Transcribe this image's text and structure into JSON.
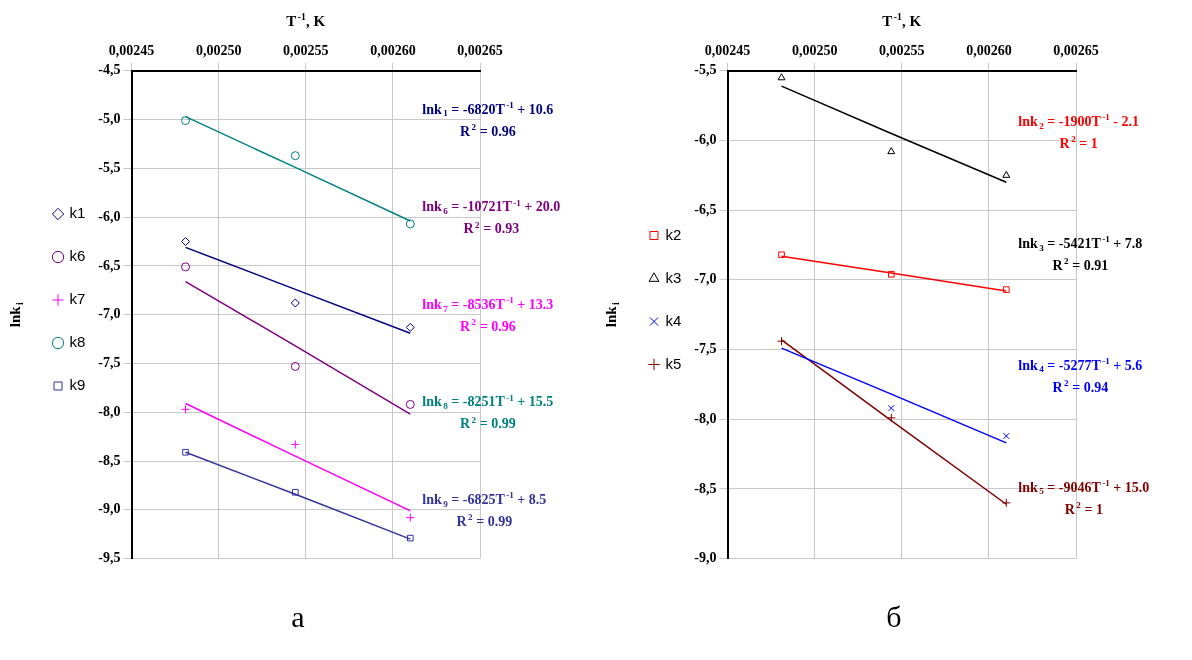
{
  "chart_data": [
    {
      "type": "scatter",
      "xlabel": "T$^{-1}$, K",
      "ylabel": "lnk$_{i}$",
      "annotations": [
        "а"
      ],
      "grid": true,
      "legend": "left",
      "xlim": [
        0.00245,
        0.00265
      ],
      "xticks": [
        {
          "value": 0.00245,
          "label": "0,00245"
        },
        {
          "value": 0.0025,
          "label": "0,00250"
        },
        {
          "value": 0.00255,
          "label": "0,00255"
        },
        {
          "value": 0.0026,
          "label": "0,00260"
        },
        {
          "value": 0.00265,
          "label": "0,00265"
        }
      ],
      "ylim": [
        -9.5,
        -4.5
      ],
      "yticks": [
        {
          "value": -4.5,
          "label": "-4,5"
        },
        {
          "value": -5,
          "label": "-5,0"
        },
        {
          "value": -5.5,
          "label": "-5,5"
        },
        {
          "value": -6,
          "label": "-6,0"
        },
        {
          "value": -6.5,
          "label": "-6,5"
        },
        {
          "value": -7,
          "label": "-7,0"
        },
        {
          "value": -7.5,
          "label": "-7,5"
        },
        {
          "value": -8,
          "label": "-8,0"
        },
        {
          "value": -8.5,
          "label": "-8,5"
        },
        {
          "value": -9,
          "label": "-9,0"
        },
        {
          "value": -9.5,
          "label": "-9,5"
        }
      ],
      "x": [
        0.002481,
        0.002544,
        0.00261
      ],
      "series": [
        {
          "name": "k1",
          "color": "#000080",
          "marker": "diamond",
          "values": [
            -6.25,
            -6.88,
            -7.13
          ]
        },
        {
          "name": "k6",
          "color": "#800080",
          "marker": "circle",
          "values": [
            -6.51,
            -7.53,
            -7.92
          ]
        },
        {
          "name": "k7",
          "color": "#ff00ff",
          "marker": "cross",
          "values": [
            -7.97,
            -8.33,
            -9.08
          ]
        },
        {
          "name": "k8",
          "color": "#008080",
          "marker": "circle",
          "values": [
            -5.01,
            -5.37,
            -6.07
          ]
        },
        {
          "name": "k9",
          "color": "#333399",
          "marker": "square",
          "values": [
            -8.41,
            -8.82,
            -9.29
          ]
        },
        {
          "type": "line",
          "name": "lnk$_{1}$ = -6820T$^{-1}$ + 10.6\nR$^{2}$ = 0.96",
          "color": "#000080",
          "marker": "none",
          "values": [
            -6.31,
            -6.74,
            -7.19
          ]
        },
        {
          "type": "line",
          "name": "lnk$_{6}$ = -10721T$^{-1}$ + 20.0\nR$^{2}$ = 0.93",
          "color": "#800080",
          "marker": "none",
          "values": [
            -6.66,
            -7.32,
            -8.02
          ]
        },
        {
          "type": "line",
          "name": "lnk$_{7}$ = -8536T$^{-1}$ + 13.3\nR$^{2}$ = 0.96",
          "color": "#ff00ff",
          "marker": "none",
          "values": [
            -7.91,
            -8.45,
            -9.01
          ]
        },
        {
          "type": "line",
          "name": "lnk$_{8}$ = -8251T$^{-1}$ + 15.5\nR$^{2}$ = 0.99",
          "color": "#008080",
          "marker": "none",
          "values": [
            -4.97,
            -5.49,
            -6.04
          ]
        },
        {
          "type": "line",
          "name": "lnk$_{9}$ = -6825T$^{-1}$ + 8.5\nR$^{2}$ = 0.99",
          "color": "#333399",
          "marker": "none",
          "values": [
            -8.41,
            -8.84,
            -9.3
          ]
        }
      ]
    },
    {
      "type": "scatter",
      "xlabel": "T$^{-1}$, K",
      "ylabel": "lnk$_{i}$",
      "annotations": [
        "б"
      ],
      "grid": true,
      "legend": "left",
      "xlim": [
        0.00245,
        0.00265
      ],
      "xticks": [
        {
          "value": 0.00245,
          "label": "0,00245"
        },
        {
          "value": 0.0025,
          "label": "0,00250"
        },
        {
          "value": 0.00255,
          "label": "0,00255"
        },
        {
          "value": 0.0026,
          "label": "0,00260"
        },
        {
          "value": 0.00265,
          "label": "0,00265"
        }
      ],
      "ylim": [
        -9,
        -5.5
      ],
      "yticks": [
        {
          "value": -5.5,
          "label": "-5,5"
        },
        {
          "value": -6,
          "label": "-6,0"
        },
        {
          "value": -6.5,
          "label": "-6,5"
        },
        {
          "value": -7,
          "label": "-7,0"
        },
        {
          "value": -7.5,
          "label": "-7,5"
        },
        {
          "value": -8,
          "label": "-8,0"
        },
        {
          "value": -8.5,
          "label": "-8,5"
        },
        {
          "value": -9,
          "label": "-9,0"
        }
      ],
      "x": [
        0.002481,
        0.002544,
        0.00261
      ],
      "series": [
        {
          "name": "k2",
          "color": "#ff0000",
          "marker": "square",
          "values": [
            -6.82,
            -6.96,
            -7.07
          ]
        },
        {
          "name": "k3",
          "color": "#000000",
          "marker": "triangle",
          "values": [
            -5.55,
            -6.08,
            -6.25
          ]
        },
        {
          "name": "k4",
          "color": "#0000ff",
          "marker": "x",
          "values": [
            null,
            -7.92,
            -8.12
          ]
        },
        {
          "name": "k5",
          "color": "#800000",
          "marker": "cross",
          "values": [
            -7.44,
            -7.99,
            -8.6
          ]
        },
        {
          "type": "line",
          "name": "lnk$_{2}$ = -1900T$^{-1}$ - 2.1\nR$^{2}$ = 1",
          "color": "#ff0000",
          "marker": "none",
          "values": [
            -6.83,
            -6.95,
            -7.08
          ]
        },
        {
          "type": "line",
          "name": "lnk$_{3}$ = -5421T$^{-1}$ + 7.8\nR$^{2}$ = 0.91",
          "color": "#000000",
          "marker": "none",
          "values": [
            -5.61,
            -5.95,
            -6.3
          ]
        },
        {
          "type": "line",
          "name": "lnk$_{4}$ = -5277T$^{-1}$ + 5.6\nR$^{2}$ = 0.94",
          "color": "#0000ff",
          "marker": "none",
          "values": [
            -7.49,
            -7.82,
            -8.17
          ]
        },
        {
          "type": "line",
          "name": "lnk$_{5}$ = -9046T$^{-1}$ + 15.0\nR$^{2}$ = 1",
          "color": "#800000",
          "marker": "none",
          "values": [
            -7.43,
            -8.01,
            -8.61
          ]
        }
      ]
    }
  ]
}
